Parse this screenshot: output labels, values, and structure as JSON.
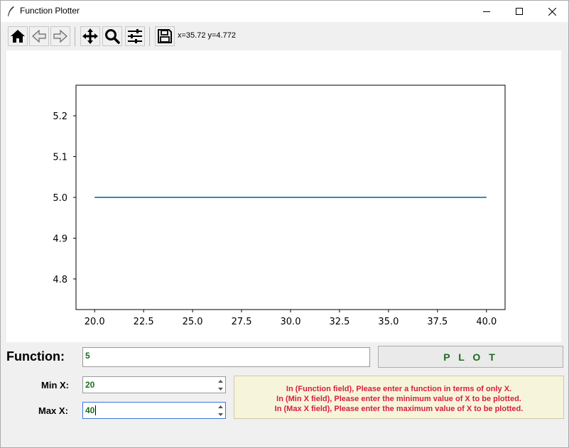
{
  "window": {
    "title": "Function Plotter"
  },
  "toolbar": {
    "buttons": [
      {
        "name": "home-icon"
      },
      {
        "name": "back-icon"
      },
      {
        "name": "forward-icon"
      },
      {
        "name": "pan-icon"
      },
      {
        "name": "zoom-icon"
      },
      {
        "name": "configure-subplots-icon"
      },
      {
        "name": "save-icon"
      }
    ],
    "coordinates": "x=35.72 y=4.772"
  },
  "chart_data": {
    "type": "line",
    "x": [
      20,
      40
    ],
    "y": [
      5,
      5
    ],
    "xlim": [
      19.05,
      40.95
    ],
    "ylim": [
      4.725,
      5.275
    ],
    "xticks": [
      "20.0",
      "22.5",
      "25.0",
      "27.5",
      "30.0",
      "32.5",
      "35.0",
      "37.5",
      "40.0"
    ],
    "yticks": [
      "4.8",
      "4.9",
      "5.0",
      "5.1",
      "5.2"
    ],
    "line_color": "#1f77b4",
    "grid": false
  },
  "form": {
    "function_label": "Function:",
    "function_value": "5",
    "plot_button_label": "P L O T",
    "min_label": "Min X:",
    "min_value": "20",
    "max_label": "Max X:",
    "max_value": "40"
  },
  "info": {
    "lines": [
      "In (Function field), Please enter a function in terms of only X.",
      "In (Min X field), Please enter the minimum value of X to be plotted.",
      "In (Max X field), Please enter the maximum value of X to be plotted."
    ]
  },
  "colors": {
    "accent_text": "#1d6b1d",
    "info_text": "#d61f3a",
    "info_bg": "#f7f4dc",
    "plot_line": "#1f77b4"
  }
}
